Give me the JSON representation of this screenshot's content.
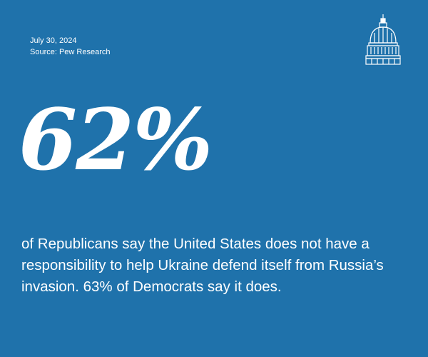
{
  "header": {
    "date": "July 30, 2024",
    "source": "Source: Pew Research"
  },
  "logo": {
    "icon": "capitol-dome-icon"
  },
  "stat": {
    "value": "62%"
  },
  "statement": {
    "text": "of Republicans say the United States does not have a responsibility to help Ukraine defend itself from Russia’s invasion. 63% of Democrats say it does."
  },
  "colors": {
    "background": "#1f72ab",
    "text": "#ffffff"
  }
}
